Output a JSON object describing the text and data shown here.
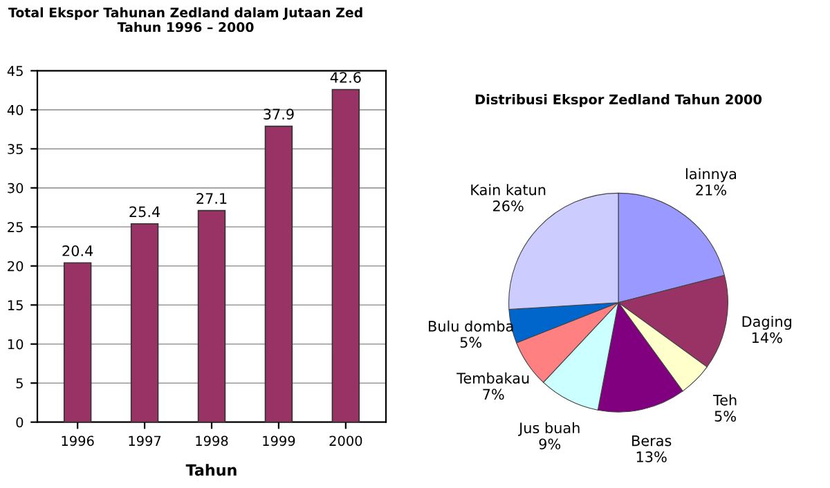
{
  "chart_data": [
    {
      "type": "bar",
      "title": "Total Ekspor Tahunan Zedland dalam Jutaan Zed\nTahun 1996 – 2000",
      "xlabel": "Tahun",
      "categories": [
        "1996",
        "1997",
        "1998",
        "1999",
        "2000"
      ],
      "values": [
        20.4,
        25.4,
        27.1,
        37.9,
        42.6
      ],
      "color": "#993366",
      "ylim": [
        0,
        45
      ],
      "yticks": [
        0,
        5,
        10,
        15,
        20,
        25,
        30,
        35,
        40,
        45
      ],
      "grid": "y",
      "data_labels": true
    },
    {
      "type": "pie",
      "title": "Distribusi Ekspor Zedland Tahun 2000",
      "categories": [
        "lainnya",
        "Daging",
        "Teh",
        "Beras",
        "Jus buah",
        "Tembakau",
        "Bulu domba",
        "Kain katun"
      ],
      "values": [
        21,
        14,
        5,
        13,
        9,
        7,
        5,
        26
      ],
      "colors": [
        "#9999ff",
        "#993366",
        "#ffffcc",
        "#800080",
        "#ccffff",
        "#ff8080",
        "#0066cc",
        "#ccccff"
      ],
      "value_labels": [
        "21%",
        "14%",
        "5%",
        "13%",
        "9%",
        "7%",
        "5%",
        "26%"
      ]
    }
  ]
}
